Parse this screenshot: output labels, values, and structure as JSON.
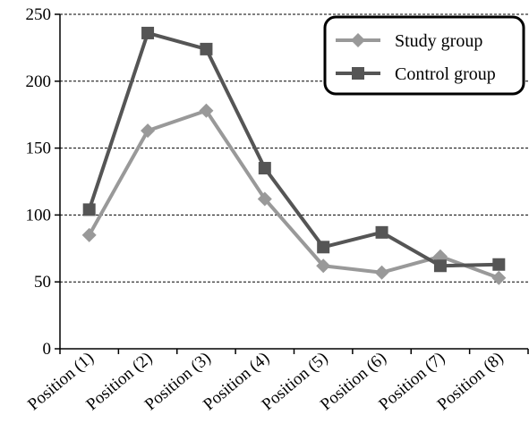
{
  "chart_data": {
    "type": "line",
    "categories": [
      "Position (1)",
      "Position (2)",
      "Position (3)",
      "Position (4)",
      "Position (5)",
      "Position (6)",
      "Position (7)",
      "Position (8)"
    ],
    "series": [
      {
        "name": "Study group",
        "values": [
          85,
          163,
          178,
          112,
          62,
          57,
          69,
          53
        ],
        "color": "#999999",
        "marker": "diamond"
      },
      {
        "name": "Control group",
        "values": [
          104,
          236,
          224,
          135,
          76,
          87,
          62,
          63
        ],
        "color": "#555555",
        "marker": "square"
      }
    ],
    "ylim": [
      0,
      250
    ],
    "yticks": [
      0,
      50,
      100,
      150,
      200,
      250
    ],
    "grid": "horizontal-dashed",
    "legend_position": "top-right"
  }
}
